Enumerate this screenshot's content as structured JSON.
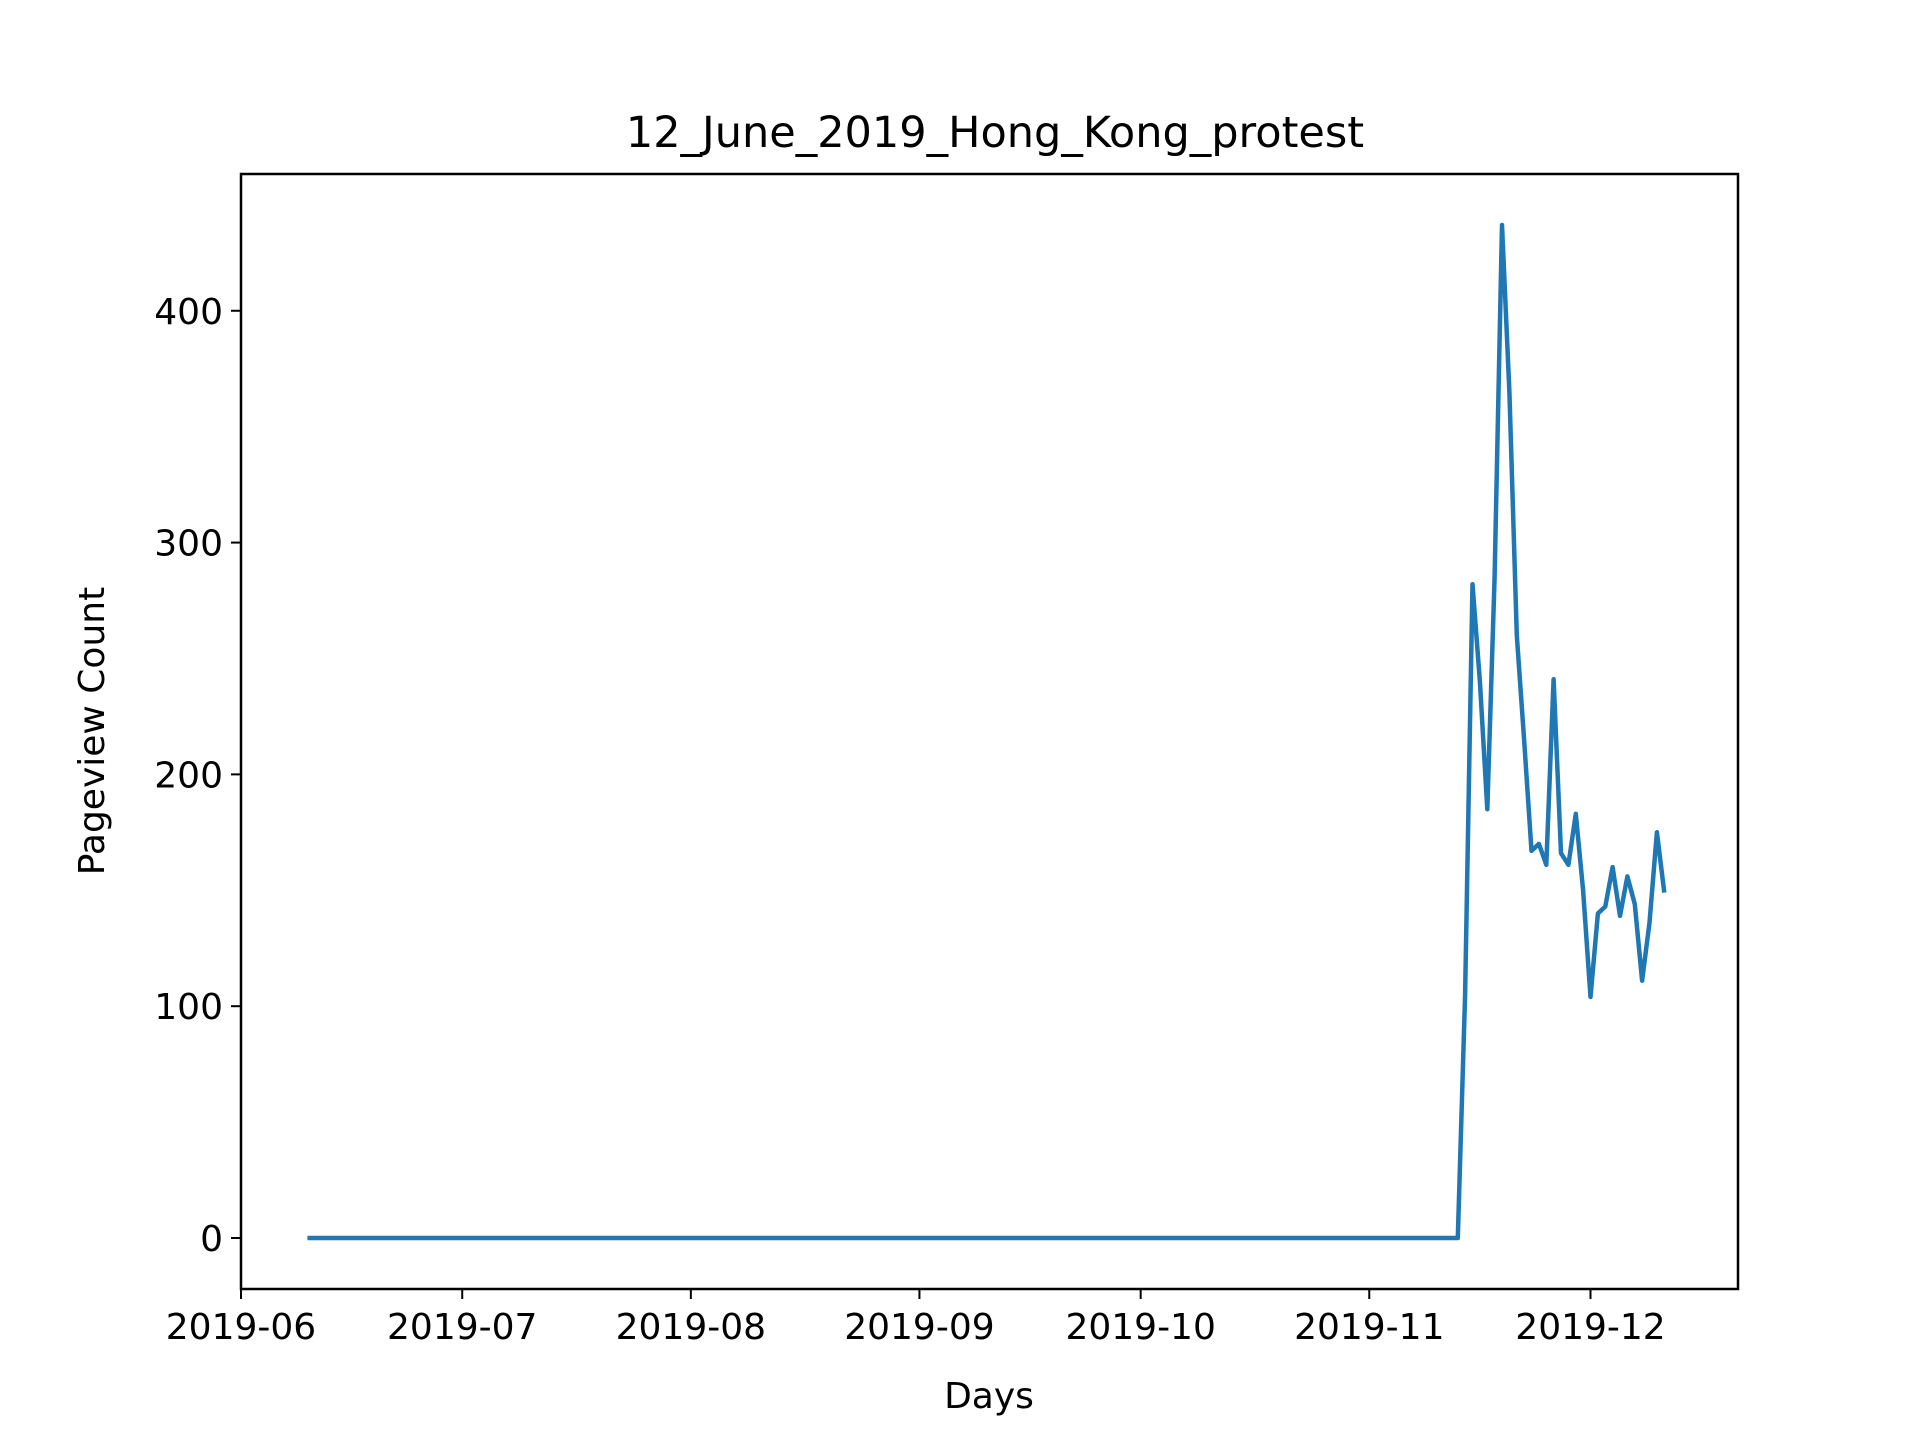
{
  "chart_data": {
    "type": "line",
    "title": "12_June_2019_Hong_Kong_protest",
    "xlabel": "Days",
    "ylabel": "Pageview Count",
    "x_axis_kind": "date",
    "xlim": [
      "2019-06-01",
      "2019-12-21"
    ],
    "ylim": [
      -22,
      459
    ],
    "x_ticks": [
      "2019-06-01",
      "2019-07-01",
      "2019-08-01",
      "2019-09-01",
      "2019-10-01",
      "2019-11-01",
      "2019-12-01"
    ],
    "x_tick_labels": [
      "2019-06",
      "2019-07",
      "2019-08",
      "2019-09",
      "2019-10",
      "2019-11",
      "2019-12"
    ],
    "y_ticks": [
      0,
      100,
      200,
      300,
      400
    ],
    "y_tick_labels": [
      "0",
      "100",
      "200",
      "300",
      "400"
    ],
    "grid": false,
    "legend": "none",
    "series": [
      {
        "color": "#1f77b4",
        "points": [
          [
            "2019-06-10",
            0
          ],
          [
            "2019-11-13",
            0
          ],
          [
            "2019-11-14",
            105
          ],
          [
            "2019-11-15",
            282
          ],
          [
            "2019-11-16",
            240
          ],
          [
            "2019-11-17",
            185
          ],
          [
            "2019-11-18",
            285
          ],
          [
            "2019-11-19",
            437
          ],
          [
            "2019-11-20",
            365
          ],
          [
            "2019-11-21",
            260
          ],
          [
            "2019-11-22",
            215
          ],
          [
            "2019-11-23",
            167
          ],
          [
            "2019-11-24",
            170
          ],
          [
            "2019-11-25",
            161
          ],
          [
            "2019-11-26",
            241
          ],
          [
            "2019-11-27",
            166
          ],
          [
            "2019-11-28",
            161
          ],
          [
            "2019-11-29",
            183
          ],
          [
            "2019-11-30",
            150
          ],
          [
            "2019-12-01",
            104
          ],
          [
            "2019-12-02",
            140
          ],
          [
            "2019-12-03",
            143
          ],
          [
            "2019-12-04",
            160
          ],
          [
            "2019-12-05",
            139
          ],
          [
            "2019-12-06",
            156
          ],
          [
            "2019-12-07",
            144
          ],
          [
            "2019-12-08",
            111
          ],
          [
            "2019-12-09",
            136
          ],
          [
            "2019-12-10",
            175
          ],
          [
            "2019-12-11",
            149
          ]
        ]
      }
    ]
  }
}
